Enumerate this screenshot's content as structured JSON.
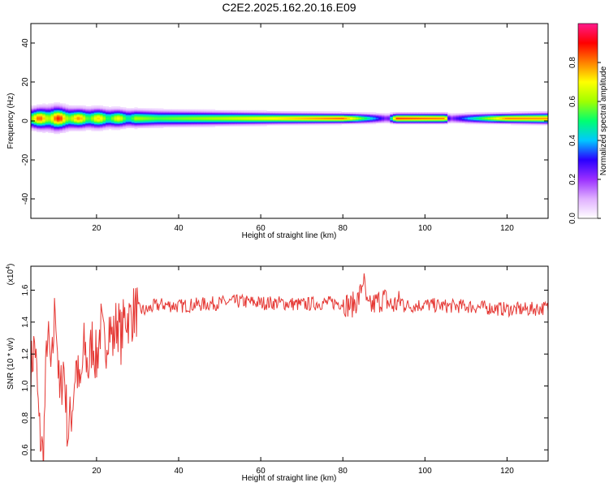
{
  "figure_title": "C2E2.2025.162.20.16.E09",
  "colors": {
    "snr_line": "#e53935",
    "colormap": [
      "#ffffff",
      "#e0b0ff",
      "#9b30ff",
      "#2a00ff",
      "#00c8ff",
      "#00ff70",
      "#a0ff00",
      "#ffff00",
      "#ff8000",
      "#ff0000",
      "#ff1a8c"
    ]
  },
  "chart_data": [
    {
      "type": "heatmap",
      "title": "",
      "xlabel": "Height of straight line (km)",
      "ylabel": "Frequency (Hz)",
      "xlim": [
        4,
        130
      ],
      "ylim": [
        -50,
        50
      ],
      "x_ticks": [
        20,
        40,
        60,
        80,
        100,
        120
      ],
      "y_ticks": [
        -40,
        -20,
        0,
        20,
        40
      ],
      "colorbar": {
        "label": "Normalized spectral amplitude",
        "range": [
          0,
          1
        ],
        "ticks": [
          "0.0",
          "0.2",
          "0.4",
          "0.6",
          "0.8"
        ]
      },
      "band": {
        "center_freq_hz": 1.5,
        "profile_km": [
          4,
          10,
          15,
          20,
          26,
          35,
          50,
          65,
          80,
          91,
          93,
          105,
          106,
          120,
          130
        ],
        "halfwidth_hz": [
          4.5,
          5.5,
          4.5,
          4.5,
          4.0,
          3.5,
          3.0,
          2.5,
          2.2,
          2.2,
          2.2,
          2.2,
          2.2,
          2.2,
          2.5
        ],
        "peak_amplitude": [
          0.75,
          0.85,
          0.75,
          0.7,
          0.65,
          0.55,
          0.62,
          0.72,
          0.82,
          0.2,
          0.85,
          0.8,
          0.2,
          0.8,
          0.78
        ]
      }
    },
    {
      "type": "line",
      "title": "",
      "xlabel": "Height of straight line (km)",
      "ylabel": "SNR (10 * v/v)",
      "y_multiplier_label": "(x10",
      "y_multiplier_exp": "4",
      "xlim": [
        4,
        130
      ],
      "ylim": [
        0.53,
        1.75
      ],
      "x_ticks": [
        20,
        40,
        60,
        80,
        100,
        120
      ],
      "y_ticks": [
        "0.6",
        "0.8",
        "1.0",
        "1.2",
        "1.4",
        "1.6"
      ],
      "series": [
        {
          "x": [
            4,
            5,
            6,
            7,
            8,
            9,
            10,
            11,
            12,
            13,
            14,
            15,
            16,
            17,
            18,
            19,
            20,
            21,
            22,
            23,
            24,
            25,
            26,
            27,
            28,
            29,
            30,
            32,
            34,
            36,
            40,
            45,
            50,
            55,
            60,
            65,
            70,
            75,
            80,
            82,
            84,
            85,
            86,
            88,
            90,
            92,
            94,
            96,
            100,
            105,
            110,
            115,
            120,
            125,
            130
          ],
          "values": [
            1.1,
            1.28,
            0.75,
            0.55,
            1.35,
            1.05,
            1.55,
            0.9,
            1.15,
            0.7,
            0.85,
            1.15,
            0.95,
            1.25,
            1.1,
            1.3,
            1.15,
            1.38,
            1.22,
            1.4,
            1.28,
            1.42,
            1.3,
            1.45,
            1.42,
            1.46,
            1.48,
            1.47,
            1.5,
            1.51,
            1.5,
            1.51,
            1.52,
            1.53,
            1.52,
            1.52,
            1.51,
            1.52,
            1.52,
            1.5,
            1.55,
            1.68,
            1.48,
            1.52,
            1.55,
            1.5,
            1.53,
            1.5,
            1.51,
            1.5,
            1.5,
            1.49,
            1.48,
            1.48,
            1.49
          ]
        }
      ]
    }
  ]
}
